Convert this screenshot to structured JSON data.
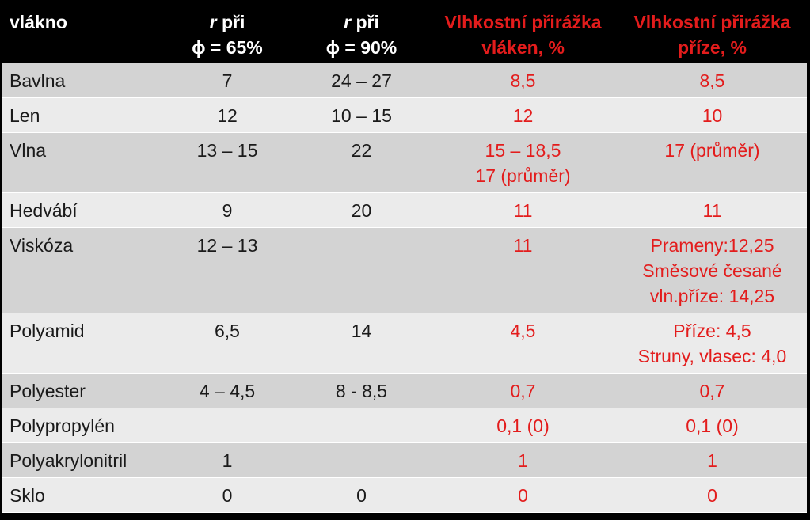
{
  "header": {
    "col0": "vlákno",
    "col1_var": "r",
    "col1_text": " při",
    "col1_line2": "ϕ = 65%",
    "col2_var": "r",
    "col2_text": " při",
    "col2_line2": "ϕ = 90%",
    "col3_line1": "Vlhkostní přirážka",
    "col3_line2": "vláken, %",
    "col4_line1": "Vlhkostní přirážka",
    "col4_line2": "příze, %"
  },
  "rows": [
    {
      "fiber": "Bavlna",
      "r65": "7",
      "r90": "24 – 27",
      "fiber_regain": [
        "8,5"
      ],
      "yarn_regain": [
        "8,5"
      ]
    },
    {
      "fiber": "Len",
      "r65": "12",
      "r90": "10 – 15",
      "fiber_regain": [
        "12"
      ],
      "yarn_regain": [
        "10"
      ]
    },
    {
      "fiber": "Vlna",
      "r65": "13 – 15",
      "r90": "22",
      "fiber_regain": [
        "15 – 18,5",
        "17 (průměr)"
      ],
      "yarn_regain": [
        "17 (průměr)"
      ]
    },
    {
      "fiber": "Hedvábí",
      "r65": "9",
      "r90": "20",
      "fiber_regain": [
        "11"
      ],
      "yarn_regain": [
        "11"
      ]
    },
    {
      "fiber": "Viskóza",
      "r65": "12 – 13",
      "r90": "",
      "fiber_regain": [
        "11"
      ],
      "yarn_regain": [
        "Prameny:12,25",
        "Směsové česané",
        "vln.příze: 14,25"
      ]
    },
    {
      "fiber": "Polyamid",
      "r65": "6,5",
      "r90": "14",
      "fiber_regain": [
        "4,5"
      ],
      "yarn_regain": [
        "Příze: 4,5",
        "Struny, vlasec: 4,0"
      ]
    },
    {
      "fiber": "Polyester",
      "r65": "4 – 4,5",
      "r90": "8 - 8,5",
      "fiber_regain": [
        "0,7"
      ],
      "yarn_regain": [
        "0,7"
      ]
    },
    {
      "fiber": "Polypropylén",
      "r65": "",
      "r90": "",
      "fiber_regain": [
        "0,1 (0)"
      ],
      "yarn_regain": [
        "0,1 (0)"
      ]
    },
    {
      "fiber": "Polyakrylonitril",
      "r65": "1",
      "r90": "",
      "fiber_regain": [
        "1"
      ],
      "yarn_regain": [
        "1"
      ]
    },
    {
      "fiber": "Sklo",
      "r65": "0",
      "r90": "0",
      "fiber_regain": [
        "0"
      ],
      "yarn_regain": [
        "0"
      ]
    }
  ],
  "colors": {
    "header_bg": "#000000",
    "header_text": "#ffffff",
    "accent_red": "#e31c1c",
    "row_dark": "#d3d3d3",
    "row_light": "#ebebeb"
  }
}
